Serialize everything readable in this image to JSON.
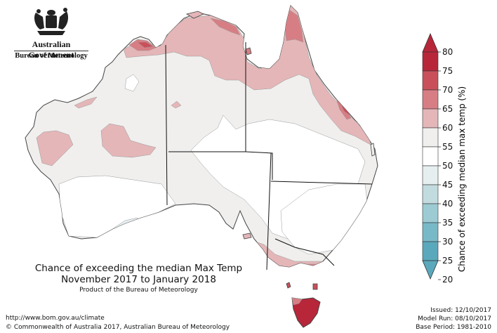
{
  "header": {
    "government": "Australian Government",
    "agency": "Bureau of Meteorology"
  },
  "map": {
    "title_line1": "Chance of exceeding the median Max Temp",
    "title_line2": "November 2017 to January 2018",
    "subtitle": "Product of the Bureau of Meteorology",
    "land_color_default": "#f0efee",
    "sea_color": "#ffffff"
  },
  "legend": {
    "title": "Chance of exceeding median max temp (%)",
    "ticks": [
      "80",
      "75",
      "70",
      "65",
      "60",
      "55",
      "50",
      "45",
      "40",
      "35",
      "30",
      "25",
      "20"
    ],
    "colors": [
      "#b8263a",
      "#c9505a",
      "#d77e84",
      "#e4b6b8",
      "#f0efee",
      "#ffffff",
      "#e6eef0",
      "#c2dbdf",
      "#9ccbd3",
      "#78b9c8",
      "#5aa8bc"
    ],
    "top_arrow_color": "#b8263a",
    "bottom_arrow_color": "#5aa8bc"
  },
  "footer": {
    "url": "http://www.bom.gov.au/climate",
    "copyright": "© Commonwealth of Australia 2017, Australian Bureau of Meteorology",
    "issued": "Issued: 12/10/2017",
    "model_run": "Model Run: 08/10/2017",
    "base_period": "Base Period: 1981-2010"
  }
}
